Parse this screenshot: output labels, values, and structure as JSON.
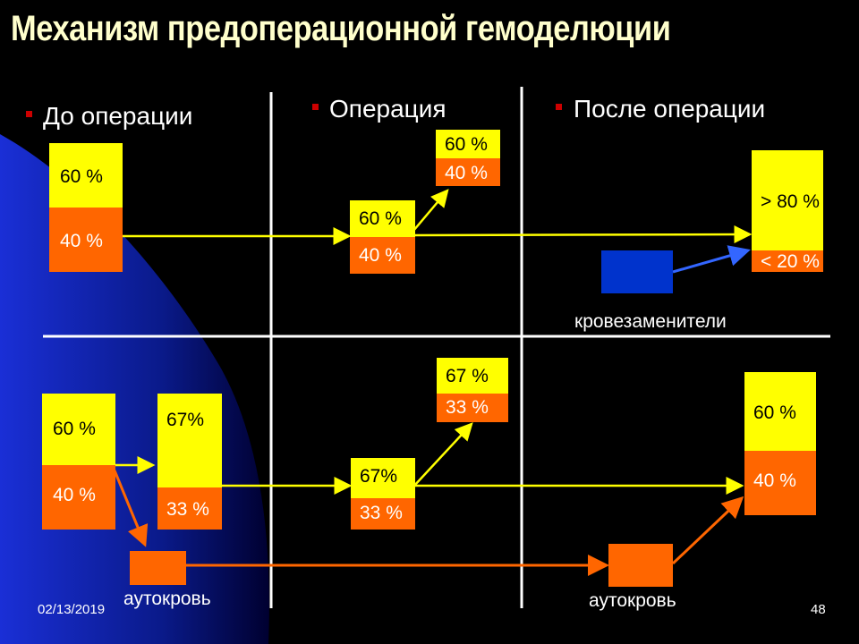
{
  "slide": {
    "title": "Механизм предоперационной гемоделюции",
    "date": "02/13/2019",
    "page_number": "48"
  },
  "headers": {
    "before": "До операции",
    "during": "Операция",
    "after": "После операции"
  },
  "top": {
    "before": {
      "top_pct": "60 %",
      "bottom_pct": "40 %"
    },
    "during": {
      "top_pct": "60 %",
      "bottom_pct": "40 %"
    },
    "during_out": {
      "top_pct": "60 %",
      "bottom_pct": "40 %"
    },
    "after": {
      "top_pct": "> 80 %",
      "bottom_pct": "< 20 %"
    },
    "substitutes_label": "кровезаменители"
  },
  "bottom": {
    "before": {
      "top_pct": "60 %",
      "bottom_pct": "40 %"
    },
    "before_diluted": {
      "top_pct": "67%",
      "bottom_pct": "33 %"
    },
    "during": {
      "top_pct": "67%",
      "bottom_pct": "33 %"
    },
    "during_out": {
      "top_pct": "67 %",
      "bottom_pct": "33 %"
    },
    "after": {
      "top_pct": "60 %",
      "bottom_pct": "40 %"
    },
    "autoblood_left": "аутокровь",
    "autoblood_right": "аутокровь"
  },
  "colors": {
    "plasma": "#ffff00",
    "cells": "#ff6600",
    "substitute": "#0033cc",
    "bullet": "#cc0000"
  }
}
